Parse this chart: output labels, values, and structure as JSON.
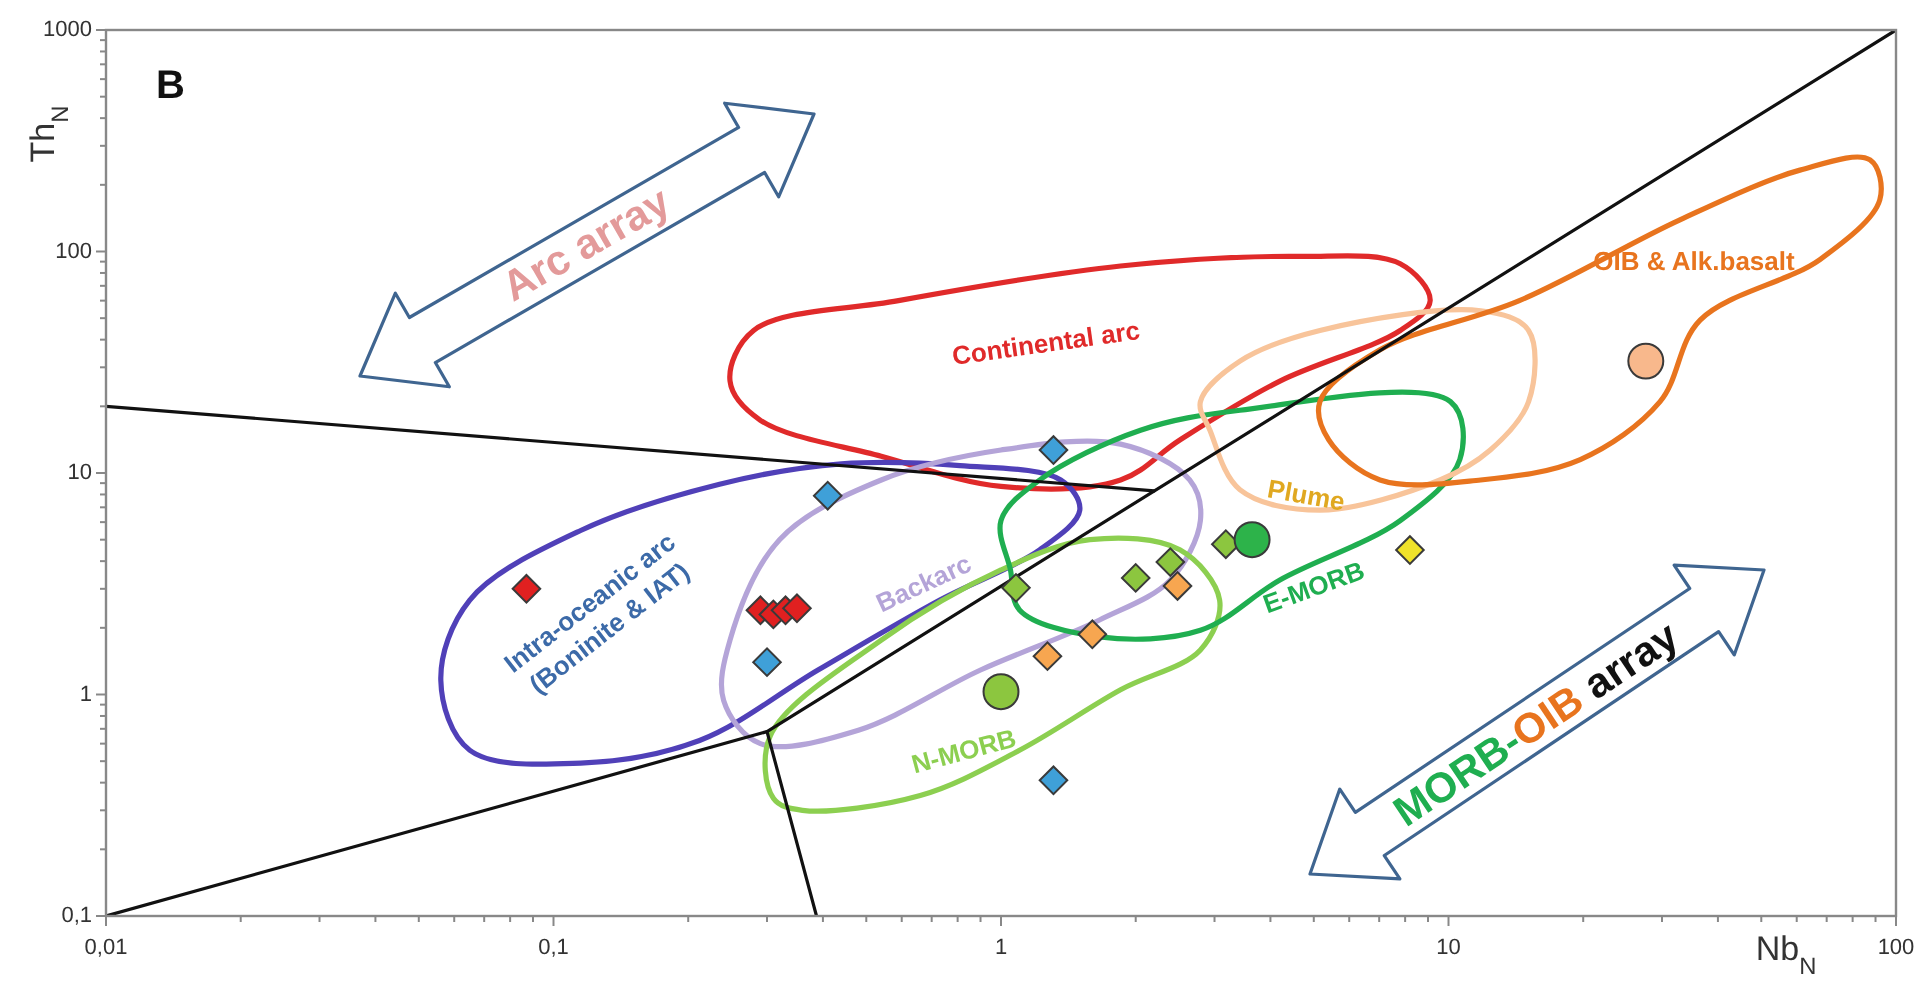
{
  "chart_data": {
    "type": "scatter",
    "title": "B",
    "xlabel": "Nb$_{N}$",
    "ylabel": "Th$_{N}$",
    "log": "xy",
    "xlim": [
      0.01,
      100
    ],
    "ylim": [
      0.1,
      1000
    ],
    "xticks": [
      {
        "value": 0.01,
        "label": "0,01"
      },
      {
        "value": 0.02,
        "label": null
      },
      {
        "value": 0.03,
        "label": null
      },
      {
        "value": 0.04,
        "label": null
      },
      {
        "value": 0.05,
        "label": null
      },
      {
        "value": 0.06,
        "label": null
      },
      {
        "value": 0.07,
        "label": null
      },
      {
        "value": 0.08,
        "label": null
      },
      {
        "value": 0.09,
        "label": null
      },
      {
        "value": 0.1,
        "label": "0,1"
      },
      {
        "value": 0.2,
        "label": null
      },
      {
        "value": 0.3,
        "label": null
      },
      {
        "value": 0.4,
        "label": null
      },
      {
        "value": 0.5,
        "label": null
      },
      {
        "value": 0.6,
        "label": null
      },
      {
        "value": 0.7,
        "label": null
      },
      {
        "value": 0.8,
        "label": null
      },
      {
        "value": 0.9,
        "label": null
      },
      1,
      {
        "value": 2,
        "label": null
      },
      {
        "value": 3,
        "label": null
      },
      {
        "value": 4,
        "label": null
      },
      {
        "value": 5,
        "label": null
      },
      {
        "value": 6,
        "label": null
      },
      {
        "value": 7,
        "label": null
      },
      {
        "value": 8,
        "label": null
      },
      {
        "value": 9,
        "label": null
      },
      10,
      {
        "value": 20,
        "label": null
      },
      {
        "value": 30,
        "label": null
      },
      {
        "value": 40,
        "label": null
      },
      {
        "value": 50,
        "label": null
      },
      {
        "value": 60,
        "label": null
      },
      {
        "value": 70,
        "label": null
      },
      {
        "value": 80,
        "label": null
      },
      {
        "value": 90,
        "label": null
      },
      100
    ],
    "yticks": [
      {
        "value": 0.1,
        "label": "0,1"
      },
      {
        "value": 0.2,
        "label": null
      },
      {
        "value": 0.3,
        "label": null
      },
      {
        "value": 0.4,
        "label": null
      },
      {
        "value": 0.5,
        "label": null
      },
      {
        "value": 0.6,
        "label": null
      },
      {
        "value": 0.7,
        "label": null
      },
      {
        "value": 0.8,
        "label": null
      },
      {
        "value": 0.9,
        "label": null
      },
      1,
      {
        "value": 2,
        "label": null
      },
      {
        "value": 3,
        "label": null
      },
      {
        "value": 4,
        "label": null
      },
      {
        "value": 5,
        "label": null
      },
      {
        "value": 6,
        "label": null
      },
      {
        "value": 7,
        "label": null
      },
      {
        "value": 8,
        "label": null
      },
      {
        "value": 9,
        "label": null
      },
      10,
      {
        "value": 20,
        "label": null
      },
      {
        "value": 30,
        "label": null
      },
      {
        "value": 40,
        "label": null
      },
      {
        "value": 50,
        "label": null
      },
      {
        "value": 60,
        "label": null
      },
      {
        "value": 70,
        "label": null
      },
      {
        "value": 80,
        "label": null
      },
      {
        "value": 90,
        "label": null
      },
      100,
      {
        "value": 200,
        "label": null
      },
      {
        "value": 300,
        "label": null
      },
      {
        "value": 400,
        "label": null
      },
      {
        "value": 500,
        "label": null
      },
      {
        "value": 600,
        "label": null
      },
      {
        "value": 700,
        "label": null
      },
      {
        "value": 800,
        "label": null
      },
      {
        "value": 900,
        "label": null
      },
      1000
    ],
    "series": [
      {
        "type": "line",
        "color": "#111111",
        "marker": "none",
        "x": [
          0.01,
          0.3,
          100
        ],
        "values": [
          0.1,
          0.68,
          1000
        ]
      },
      {
        "type": "line",
        "color": "#111111",
        "marker": "none",
        "x": [
          0.01,
          2.2
        ],
        "values": [
          20,
          8.3
        ]
      },
      {
        "type": "line",
        "color": "#111111",
        "marker": "none",
        "x": [
          0.3,
          0.387
        ],
        "values": [
          0.68,
          0.1
        ]
      },
      {
        "type": "scatter",
        "color": "#e02020",
        "marker": "diamond",
        "x": [
          0.087,
          0.29,
          0.31,
          0.33,
          0.35
        ],
        "values": [
          3.0,
          2.4,
          2.3,
          2.4,
          2.45
        ]
      },
      {
        "type": "scatter",
        "color": "#3fa0d8",
        "marker": "diamond",
        "x": [
          0.41,
          1.31,
          0.3,
          1.31
        ],
        "values": [
          7.9,
          12.7,
          1.4,
          0.41
        ]
      },
      {
        "type": "scatter",
        "color": "#8cc63f",
        "marker": "diamond",
        "x": [
          1.08,
          2.0,
          2.39,
          3.18
        ],
        "values": [
          3.03,
          3.36,
          3.96,
          4.77
        ]
      },
      {
        "type": "scatter",
        "color": "#f7a650",
        "marker": "diamond",
        "x": [
          2.48,
          1.6,
          1.27
        ],
        "values": [
          3.09,
          1.87,
          1.49
        ]
      },
      {
        "type": "scatter",
        "color": "#f0e22a",
        "marker": "diamond",
        "x": [
          8.2
        ],
        "values": [
          4.49
        ]
      },
      {
        "type": "scatter",
        "color": "#2db34a",
        "marker": "circle",
        "x": [
          3.64
        ],
        "values": [
          5.0
        ]
      },
      {
        "type": "scatter",
        "color": "#8cc63f",
        "marker": "circle",
        "x": [
          1.0
        ],
        "values": [
          1.03
        ]
      },
      {
        "type": "scatter",
        "color": "#f8b88c",
        "marker": "circle",
        "x": [
          27.6
        ],
        "values": [
          32
        ]
      }
    ],
    "annotations": [
      "Arc array",
      "MORB-OIB array",
      "Continental arc",
      "Intra-oceanic arc\n(Boninite & IAT)",
      "Backarc",
      "N-MORB",
      "E-MORB",
      "Plume",
      "OIB & Alk.basalt"
    ]
  }
}
